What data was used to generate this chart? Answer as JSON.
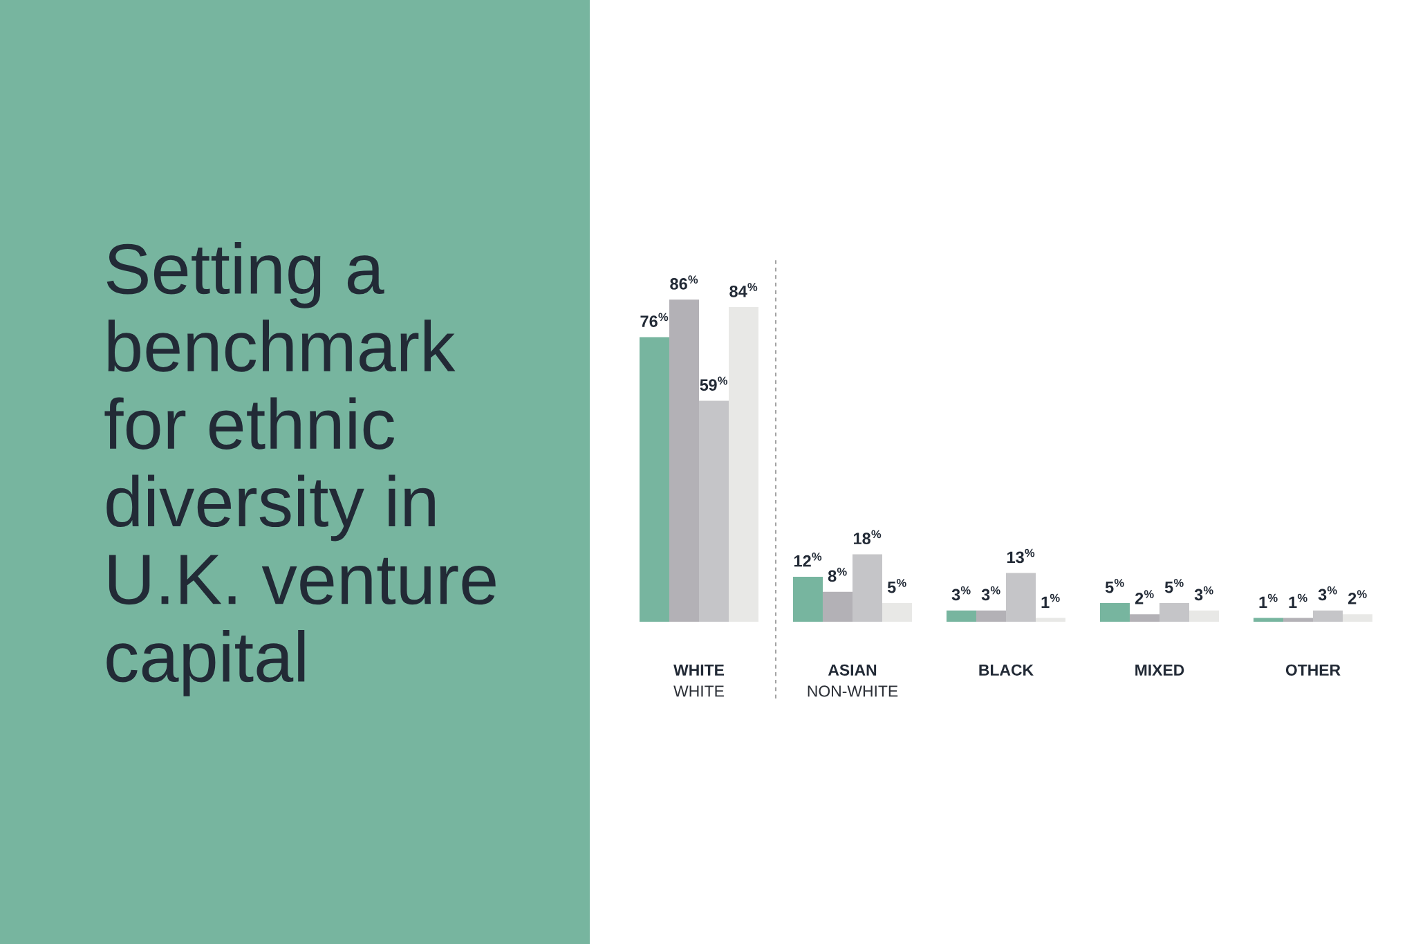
{
  "chart_data": {
    "type": "bar",
    "title": "Setting a benchmark for ethnic diversity in U.K. venture capital",
    "categories": [
      "WHITE",
      "ASIAN",
      "BLACK",
      "MIXED",
      "OTHER"
    ],
    "series": [
      {
        "color": "#77b59f",
        "values": [
          76,
          12,
          3,
          5,
          1
        ],
        "value_labels": [
          "76$^{%}$",
          "12$^{%}$",
          "3$^{%}$",
          "5$^{%}$",
          "1$^{%}$"
        ]
      },
      {
        "color": "#b3b1b6",
        "values": [
          86,
          8,
          3,
          2,
          1
        ],
        "value_labels": [
          "86$^{%}$",
          "8$^{%}$",
          "3$^{%}$",
          "2$^{%}$",
          "1$^{%}$"
        ]
      },
      {
        "color": "#c5c5c8",
        "values": [
          59,
          18,
          13,
          5,
          3
        ],
        "value_labels": [
          "59$^{%}$",
          "18$^{%}$",
          "13$^{%}$",
          "5$^{%}$",
          "3$^{%}$"
        ]
      },
      {
        "color": "#e8e8e6",
        "values": [
          84,
          5,
          1,
          3,
          2
        ],
        "value_labels": [
          "84$^{%}$",
          "5$^{%}$",
          "1$^{%}$",
          "3$^{%}$",
          "2$^{%}$"
        ]
      }
    ],
    "annotations": [
      "WHITE",
      "NON-WHITE"
    ],
    "tick_labels": "x"
  }
}
